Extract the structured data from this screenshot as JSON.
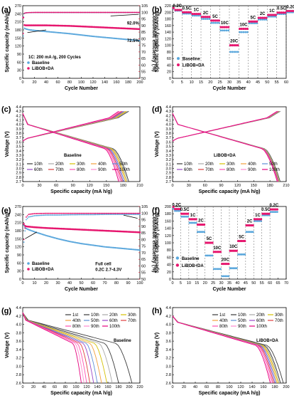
{
  "figure": {
    "panels": [
      "(a)",
      "(b)",
      "(c)",
      "(d)",
      "(e)",
      "(f)",
      "(g)",
      "(h)"
    ]
  },
  "colors": {
    "baseline": "#5aa7dc",
    "lidabob": "#e6166e",
    "efficiency_axis": "#e0162c",
    "palette": [
      "#3a3a3a",
      "#a8a8a8",
      "#d4c000",
      "#f2a03c",
      "#5e8fd6",
      "#9a48c8",
      "#e04040",
      "#ff4fb0",
      "#ff8ad0",
      "#e6007e"
    ]
  },
  "chart_data": [
    {
      "id": "a",
      "type": "scatter",
      "xlabel": "Cycle Number",
      "ylabel": "Specific capacity (mAh/g)",
      "y2label": "Coulombic efficiency (%)",
      "xlim": [
        0,
        200
      ],
      "xticks": [
        0,
        20,
        40,
        60,
        80,
        100,
        120,
        140,
        160,
        180,
        200
      ],
      "ylim": [
        0,
        270
      ],
      "yticks": [
        0,
        30,
        60,
        90,
        120,
        150,
        180,
        210,
        240,
        270
      ],
      "y2lim": [
        50,
        105
      ],
      "y2ticks": [
        50,
        55,
        60,
        65,
        70,
        75,
        80,
        85,
        90,
        95,
        100,
        105
      ],
      "condition": "1C: 200 mA /g, 200 Cycles",
      "annotations": [
        "92.0%",
        "72.5%"
      ],
      "legend": [
        "Baseline",
        "LiBOB+DA"
      ],
      "series": [
        {
          "name": "Baseline",
          "x": [
            1,
            2,
            3,
            5,
            8,
            12,
            20,
            30,
            40,
            60,
            80,
            100,
            120,
            140,
            160,
            180,
            200
          ],
          "y": [
            228,
            192,
            186,
            184,
            182,
            180,
            178,
            176,
            174,
            170,
            166,
            161,
            156,
            152,
            148,
            144,
            140
          ]
        },
        {
          "name": "LiBOB+DA",
          "x": [
            1,
            2,
            3,
            5,
            8,
            12,
            20,
            30,
            40,
            60,
            80,
            100,
            120,
            140,
            160,
            180,
            200
          ],
          "y": [
            226,
            200,
            198,
            197,
            197,
            197,
            197,
            197,
            197,
            196,
            195,
            193,
            191,
            189,
            187,
            185,
            183
          ]
        },
        {
          "name": "Baseline CE",
          "axis": "y2",
          "x": [
            1,
            2,
            3,
            5,
            10,
            20,
            40,
            80,
            120,
            160,
            200
          ],
          "y": [
            82,
            97,
            99,
            99.5,
            99.7,
            99.8,
            99.8,
            99.8,
            99.8,
            99.8,
            99.8
          ]
        },
        {
          "name": "LiBOB+DA CE",
          "axis": "y2",
          "x": [
            1,
            2,
            3,
            5,
            10,
            20,
            40,
            80,
            120,
            160,
            200
          ],
          "y": [
            84,
            98,
            99.3,
            99.6,
            99.8,
            99.9,
            99.9,
            99.9,
            99.9,
            99.9,
            99.9
          ]
        }
      ]
    },
    {
      "id": "b",
      "type": "scatter",
      "xlabel": "Cycle Number",
      "ylabel": "Specific capacity (mAh/g)",
      "xlim": [
        0,
        60
      ],
      "xticks": [
        0,
        5,
        10,
        15,
        20,
        25,
        30,
        35,
        40,
        45,
        50,
        55,
        60
      ],
      "ylim": [
        0,
        220
      ],
      "yticks": [
        0,
        20,
        40,
        60,
        80,
        100,
        120,
        140,
        160,
        180,
        200,
        220
      ],
      "rate_labels": [
        "0.2C",
        "0.5C",
        "1C",
        "2C",
        "5C",
        "10C",
        "20C",
        "10C",
        "5C",
        "2C",
        "1C",
        "0.5C",
        "0.2C"
      ],
      "legend": [
        "Baseline",
        "LiBOB+DA"
      ],
      "series": [
        {
          "name": "Baseline",
          "step_values": [
            205,
            196,
            190,
            180,
            168,
            145,
            80,
            140,
            167,
            178,
            187,
            195,
            200
          ]
        },
        {
          "name": "LiBOB+DA",
          "step_values": [
            207,
            200,
            195,
            186,
            175,
            155,
            100,
            150,
            172,
            183,
            192,
            199,
            204
          ]
        }
      ]
    },
    {
      "id": "c",
      "type": "line",
      "xlabel": "Specific capacity (mA h/g)",
      "ylabel": "Voltage (V)",
      "title": "Baseline",
      "xlim": [
        0,
        210
      ],
      "xticks": [
        0,
        30,
        60,
        90,
        120,
        150,
        180,
        210
      ],
      "ylim": [
        2.7,
        4.4
      ],
      "yticks": [
        2.7,
        2.8,
        2.9,
        3.0,
        3.1,
        3.2,
        3.3,
        3.4,
        3.5,
        3.6,
        3.7,
        3.8,
        3.9,
        4.0,
        4.1,
        4.2,
        4.3,
        4.4
      ],
      "series_names": [
        "10th",
        "20th",
        "30th",
        "40th",
        "50th",
        "60th",
        "70th",
        "80th",
        "90th",
        "100th"
      ],
      "capacity": [
        190,
        188,
        186,
        184,
        182,
        180,
        178,
        176,
        174,
        172
      ]
    },
    {
      "id": "d",
      "type": "line",
      "xlabel": "Specific capacity (mA h/g)",
      "ylabel": "Voltage (V)",
      "title": "LiBOB+DA",
      "xlim": [
        0,
        210
      ],
      "xticks": [
        0,
        30,
        60,
        90,
        120,
        150,
        180,
        210
      ],
      "ylim": [
        2.7,
        4.4
      ],
      "yticks": [
        2.7,
        2.8,
        2.9,
        3.0,
        3.1,
        3.2,
        3.3,
        3.4,
        3.5,
        3.6,
        3.7,
        3.8,
        3.9,
        4.0,
        4.1,
        4.2,
        4.3,
        4.4
      ],
      "series_names": [
        "10th",
        "20th",
        "30th",
        "40th",
        "50th",
        "60th",
        "70th",
        "80th",
        "90th",
        "100th"
      ],
      "capacity": [
        199,
        198,
        197,
        196.5,
        196,
        195.5,
        195,
        194.5,
        194,
        193.5
      ]
    },
    {
      "id": "e",
      "type": "scatter",
      "xlabel": "Cycle Number",
      "ylabel": "Specific capacity (mAh/g)",
      "y2label": "Coulombic efficiency (%)",
      "xlim": [
        0,
        100
      ],
      "xticks": [
        0,
        10,
        20,
        30,
        40,
        50,
        60,
        70,
        80,
        90,
        100
      ],
      "ylim": [
        0,
        270
      ],
      "yticks": [
        0,
        30,
        60,
        90,
        120,
        150,
        180,
        210,
        240,
        270
      ],
      "y2lim": [
        50,
        105
      ],
      "y2ticks": [
        50,
        55,
        60,
        65,
        70,
        75,
        80,
        85,
        90,
        95,
        100,
        105
      ],
      "condition_lines": [
        "Full cell",
        "0.2C  2.7-4.3V"
      ],
      "legend": [
        "Baseline",
        "LiBOB+DA"
      ],
      "series": [
        {
          "name": "Baseline",
          "x": [
            1,
            2,
            3,
            5,
            10,
            20,
            30,
            40,
            50,
            60,
            70,
            80,
            90,
            100
          ],
          "y": [
            200,
            192,
            188,
            184,
            176,
            162,
            150,
            140,
            132,
            126,
            120,
            116,
            112,
            108
          ]
        },
        {
          "name": "LiBOB+DA",
          "x": [
            1,
            2,
            3,
            5,
            10,
            20,
            30,
            40,
            50,
            60,
            70,
            80,
            90,
            100
          ],
          "y": [
            205,
            198,
            196,
            195,
            193,
            190,
            188,
            186,
            184,
            182,
            180,
            178,
            176,
            174
          ]
        },
        {
          "name": "Baseline CE",
          "axis": "y2",
          "x": [
            1,
            3,
            5,
            10,
            20,
            30,
            40,
            50,
            60,
            70,
            80,
            90,
            100
          ],
          "y": [
            78,
            95,
            97,
            98,
            98.5,
            98.5,
            98.7,
            98.8,
            98.8,
            99,
            99,
            99,
            99
          ]
        },
        {
          "name": "LiBOB+DA CE",
          "axis": "y2",
          "x": [
            1,
            3,
            5,
            10,
            20,
            30,
            40,
            50,
            60,
            70,
            80,
            90,
            100
          ],
          "y": [
            80,
            97,
            99,
            99.6,
            99.8,
            99.8,
            99.8,
            99.8,
            99.8,
            99.8,
            99.8,
            99.8,
            99.8
          ]
        }
      ]
    },
    {
      "id": "f",
      "type": "scatter",
      "xlabel": "Cycle Number",
      "ylabel": "Specific capacity (mAh/g)",
      "xlim": [
        0,
        70
      ],
      "xticks": [
        0,
        5,
        10,
        15,
        20,
        25,
        30,
        35,
        40,
        45,
        50,
        55,
        60,
        65,
        70
      ],
      "ylim": [
        0,
        200
      ],
      "yticks": [
        0,
        20,
        40,
        60,
        80,
        100,
        120,
        140,
        160,
        180,
        200
      ],
      "rate_labels": [
        "0.2C",
        "0.5C",
        "1C",
        "2C",
        "5C",
        "10C",
        "20C",
        "10C",
        "5C",
        "2C",
        "1C",
        "0.5C",
        "0.2C"
      ],
      "legend": [
        "Baseline",
        "LiBOB+DA"
      ],
      "series": [
        {
          "name": "Baseline",
          "step_values": [
            188,
            172,
            155,
            130,
            65,
            28,
            8,
            30,
            68,
            130,
            160,
            176,
            185
          ]
        },
        {
          "name": "LiBOB+DA",
          "step_values": [
            193,
            180,
            165,
            150,
            100,
            75,
            42,
            78,
            105,
            148,
            165,
            180,
            192
          ]
        }
      ]
    },
    {
      "id": "g",
      "type": "line",
      "xlabel": "Specific capacity (mA h/g)",
      "ylabel": "Voltage (V)",
      "title": "Baseline",
      "xlim": [
        0,
        220
      ],
      "xticks": [
        0,
        20,
        40,
        60,
        80,
        100,
        120,
        140,
        160,
        180,
        200,
        220
      ],
      "ylim": [
        2.6,
        4.4
      ],
      "yticks": [
        2.6,
        2.8,
        3.0,
        3.2,
        3.4,
        3.6,
        3.8,
        4.0,
        4.2,
        4.4
      ],
      "series_names": [
        "1st",
        "10th",
        "20th",
        "30th",
        "40th",
        "50th",
        "60th",
        "70th",
        "80th",
        "90th",
        "100th"
      ],
      "capacity": [
        205,
        180,
        168,
        158,
        148,
        140,
        133,
        126,
        120,
        115,
        110
      ]
    },
    {
      "id": "h",
      "type": "line",
      "xlabel": "Specific capacity (mA h/g)",
      "ylabel": "Voltage (V)",
      "title": "LiBOB+DA",
      "xlim": [
        0,
        200
      ],
      "xticks": [
        0,
        20,
        40,
        60,
        80,
        100,
        120,
        140,
        160,
        180,
        200
      ],
      "ylim": [
        2.6,
        4.4
      ],
      "yticks": [
        2.6,
        2.8,
        3.0,
        3.2,
        3.4,
        3.6,
        3.8,
        4.0,
        4.2,
        4.4
      ],
      "series_names": [
        "1st",
        "10th",
        "20th",
        "30th",
        "40th",
        "50th",
        "60th",
        "70th",
        "80th",
        "90th",
        "100th"
      ],
      "capacity": [
        195,
        190,
        188,
        186,
        184,
        182,
        180,
        178,
        176,
        174,
        172
      ]
    }
  ]
}
